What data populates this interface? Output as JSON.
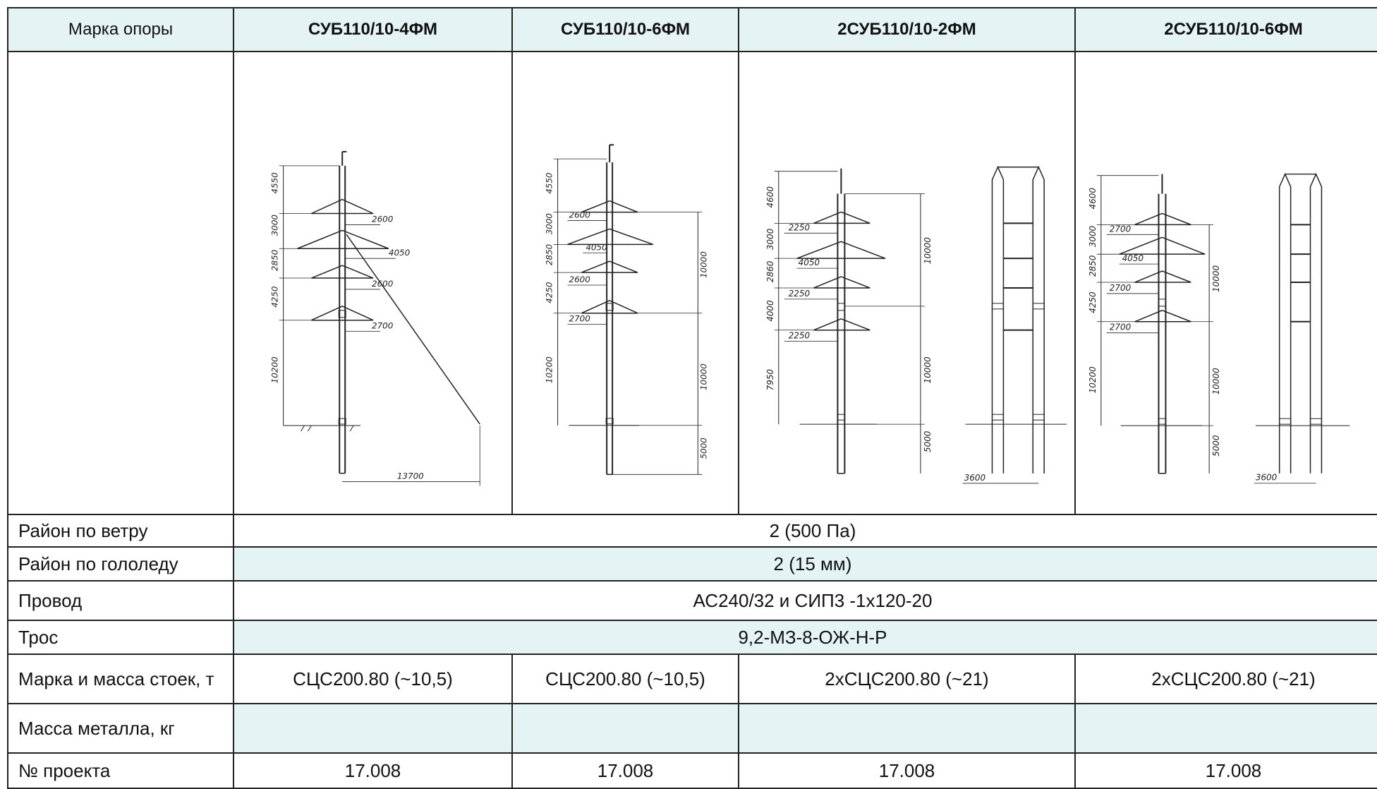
{
  "header": {
    "label": "Марка опоры",
    "columns": [
      "СУБ110/10-4ФМ",
      "СУБ110/10-6ФМ",
      "2СУБ110/10-2ФМ",
      "2СУБ110/10-6ФМ"
    ]
  },
  "drawings": {
    "d1": {
      "v": [
        "4550",
        "3000",
        "2850",
        "4250",
        "10200"
      ],
      "h": [
        "2600",
        "4050",
        "2600",
        "2700"
      ],
      "base": "13700"
    },
    "d2": {
      "v": [
        "4550",
        "3000",
        "2850",
        "4250",
        "10200"
      ],
      "h": [
        "2600",
        "4050",
        "2600",
        "2700"
      ],
      "r": [
        "10000",
        "10000",
        "5000"
      ]
    },
    "d3": {
      "v": [
        "4600",
        "3000",
        "2860",
        "4000",
        "7950"
      ],
      "h": [
        "2250",
        "4050",
        "2250",
        "2250"
      ],
      "r": [
        "10000",
        "10000",
        "5000"
      ],
      "base": "3600"
    },
    "d4": {
      "v": [
        "4600",
        "3000",
        "2850",
        "4250",
        "10200"
      ],
      "h": [
        "2700",
        "4050",
        "2700",
        "2700"
      ],
      "r": [
        "10000",
        "10000",
        "5000"
      ],
      "base": "3600"
    }
  },
  "rows": {
    "wind": {
      "label": "Район по ветру",
      "value": "2 (500 Па)"
    },
    "ice": {
      "label": "Район по гололеду",
      "value": "2 (15 мм)"
    },
    "wire": {
      "label": "Провод",
      "value": "АС240/32  и  СИП3 -1х120-20"
    },
    "cable": {
      "label": "Трос",
      "value": "9,2-МЗ-8-ОЖ-Н-Р"
    },
    "posts": {
      "label": "Марка и масса стоек, т",
      "values": [
        "СЦС200.80 (~10,5)",
        "СЦС200.80 (~10,5)",
        "2хСЦС200.80 (~21)",
        "2хСЦС200.80 (~21)"
      ]
    },
    "metal": {
      "label": "Масса металла, кг",
      "values": [
        "",
        "",
        "",
        ""
      ]
    },
    "project": {
      "label": "№ проекта",
      "values": [
        "17.008",
        "17.008",
        "17.008",
        "17.008"
      ]
    }
  }
}
